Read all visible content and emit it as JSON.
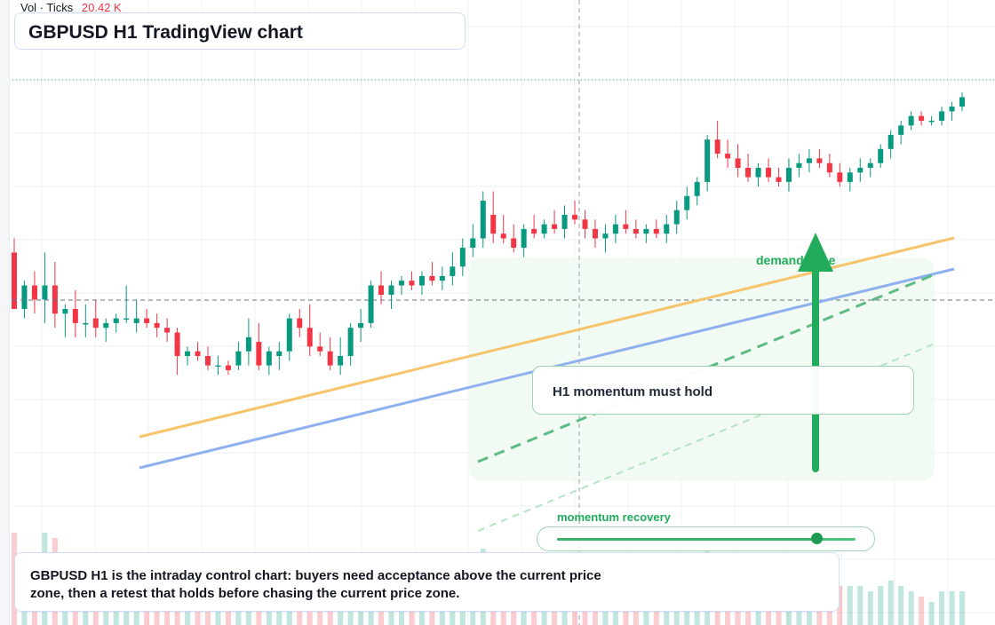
{
  "header": {
    "vol_label": "Vol",
    "ticks_label": "Ticks",
    "vol_value": "20.42 K",
    "title": "GBPUSD H1 TradingView chart"
  },
  "annotations": {
    "callout": "H1 momentum must hold",
    "zone_label": "demand zone",
    "slider_label": "momentum recovery",
    "slider_level": 0.87,
    "caption": "GBPUSD H1 is the intraday control chart: buyers need acceptance above the current price zone, then a retest that holds before chasing the current price zone."
  },
  "colors": {
    "bull": "#089981",
    "bear": "#f23645",
    "accent": "#22ab5b",
    "trend_orange": "#f7c46c",
    "trend_blue": "#8fb0ef"
  },
  "chart_data": {
    "type": "candlestick",
    "symbol": "GBPUSD",
    "timeframe": "H1",
    "price_scale": "unlabeled (0-100 relative)",
    "candles": [
      {
        "o": 52,
        "h": 55,
        "l": 40,
        "c": 40
      },
      {
        "o": 40,
        "h": 46,
        "l": 38,
        "c": 45
      },
      {
        "o": 45,
        "h": 48,
        "l": 39,
        "c": 42
      },
      {
        "o": 42,
        "h": 52,
        "l": 37,
        "c": 45
      },
      {
        "o": 45,
        "h": 50,
        "l": 36,
        "c": 39
      },
      {
        "o": 39,
        "h": 41,
        "l": 34,
        "c": 40
      },
      {
        "o": 40,
        "h": 44,
        "l": 34,
        "c": 37
      },
      {
        "o": 37,
        "h": 41,
        "l": 34,
        "c": 37
      },
      {
        "o": 38,
        "h": 42,
        "l": 34,
        "c": 36
      },
      {
        "o": 36,
        "h": 38,
        "l": 33,
        "c": 37
      },
      {
        "o": 37,
        "h": 39,
        "l": 35,
        "c": 38
      },
      {
        "o": 38,
        "h": 45,
        "l": 37,
        "c": 38
      },
      {
        "o": 37,
        "h": 42,
        "l": 35,
        "c": 38
      },
      {
        "o": 38,
        "h": 40,
        "l": 36,
        "c": 37
      },
      {
        "o": 37,
        "h": 39,
        "l": 34,
        "c": 36
      },
      {
        "o": 36,
        "h": 38,
        "l": 33,
        "c": 35
      },
      {
        "o": 35,
        "h": 36,
        "l": 26,
        "c": 30
      },
      {
        "o": 30,
        "h": 32,
        "l": 28,
        "c": 31
      },
      {
        "o": 31,
        "h": 33,
        "l": 29,
        "c": 30
      },
      {
        "o": 30,
        "h": 32,
        "l": 27,
        "c": 28
      },
      {
        "o": 28,
        "h": 30,
        "l": 26,
        "c": 28
      },
      {
        "o": 28,
        "h": 29,
        "l": 26,
        "c": 27
      },
      {
        "o": 28,
        "h": 33,
        "l": 27,
        "c": 31
      },
      {
        "o": 31,
        "h": 38,
        "l": 28,
        "c": 34
      },
      {
        "o": 33,
        "h": 37,
        "l": 27,
        "c": 28
      },
      {
        "o": 28,
        "h": 32,
        "l": 26,
        "c": 31
      },
      {
        "o": 30,
        "h": 33,
        "l": 27,
        "c": 31
      },
      {
        "o": 31,
        "h": 39,
        "l": 29,
        "c": 38
      },
      {
        "o": 38,
        "h": 40,
        "l": 34,
        "c": 36
      },
      {
        "o": 36,
        "h": 41,
        "l": 30,
        "c": 32
      },
      {
        "o": 32,
        "h": 35,
        "l": 30,
        "c": 31
      },
      {
        "o": 31,
        "h": 34,
        "l": 27,
        "c": 28
      },
      {
        "o": 28,
        "h": 34,
        "l": 26,
        "c": 30
      },
      {
        "o": 30,
        "h": 37,
        "l": 28,
        "c": 36
      },
      {
        "o": 36,
        "h": 40,
        "l": 33,
        "c": 37
      },
      {
        "o": 37,
        "h": 46,
        "l": 36,
        "c": 45
      },
      {
        "o": 45,
        "h": 48,
        "l": 41,
        "c": 43
      },
      {
        "o": 43,
        "h": 46,
        "l": 40,
        "c": 45
      },
      {
        "o": 45,
        "h": 47,
        "l": 43,
        "c": 46
      },
      {
        "o": 46,
        "h": 48,
        "l": 44,
        "c": 45
      },
      {
        "o": 45,
        "h": 48,
        "l": 43,
        "c": 47
      },
      {
        "o": 47,
        "h": 50,
        "l": 45,
        "c": 46
      },
      {
        "o": 46,
        "h": 49,
        "l": 44,
        "c": 47
      },
      {
        "o": 47,
        "h": 52,
        "l": 45,
        "c": 49
      },
      {
        "o": 49,
        "h": 55,
        "l": 47,
        "c": 53
      },
      {
        "o": 53,
        "h": 58,
        "l": 51,
        "c": 55
      },
      {
        "o": 55,
        "h": 65,
        "l": 53,
        "c": 63
      },
      {
        "o": 60,
        "h": 65,
        "l": 54,
        "c": 56
      },
      {
        "o": 56,
        "h": 60,
        "l": 54,
        "c": 55
      },
      {
        "o": 55,
        "h": 58,
        "l": 52,
        "c": 53
      },
      {
        "o": 53,
        "h": 58,
        "l": 51,
        "c": 57
      },
      {
        "o": 57,
        "h": 60,
        "l": 55,
        "c": 56
      },
      {
        "o": 56,
        "h": 59,
        "l": 55,
        "c": 58
      },
      {
        "o": 58,
        "h": 61,
        "l": 56,
        "c": 57
      },
      {
        "o": 57,
        "h": 62,
        "l": 55,
        "c": 60
      },
      {
        "o": 60,
        "h": 63,
        "l": 58,
        "c": 59
      },
      {
        "o": 59,
        "h": 61,
        "l": 55,
        "c": 57
      },
      {
        "o": 57,
        "h": 59,
        "l": 53,
        "c": 55
      },
      {
        "o": 55,
        "h": 58,
        "l": 52,
        "c": 56
      },
      {
        "o": 56,
        "h": 60,
        "l": 54,
        "c": 58
      },
      {
        "o": 58,
        "h": 61,
        "l": 56,
        "c": 57
      },
      {
        "o": 57,
        "h": 59,
        "l": 55,
        "c": 56
      },
      {
        "o": 56,
        "h": 58,
        "l": 54,
        "c": 57
      },
      {
        "o": 57,
        "h": 59,
        "l": 55,
        "c": 56
      },
      {
        "o": 56,
        "h": 60,
        "l": 54,
        "c": 58
      },
      {
        "o": 58,
        "h": 63,
        "l": 56,
        "c": 61
      },
      {
        "o": 61,
        "h": 66,
        "l": 59,
        "c": 64
      },
      {
        "o": 64,
        "h": 68,
        "l": 62,
        "c": 67
      },
      {
        "o": 67,
        "h": 77,
        "l": 65,
        "c": 76
      },
      {
        "o": 76,
        "h": 80,
        "l": 72,
        "c": 73
      },
      {
        "o": 73,
        "h": 76,
        "l": 70,
        "c": 72
      },
      {
        "o": 72,
        "h": 75,
        "l": 68,
        "c": 70
      },
      {
        "o": 70,
        "h": 73,
        "l": 67,
        "c": 68
      },
      {
        "o": 68,
        "h": 71,
        "l": 66,
        "c": 70
      },
      {
        "o": 70,
        "h": 72,
        "l": 67,
        "c": 68
      },
      {
        "o": 68,
        "h": 70,
        "l": 66,
        "c": 67
      },
      {
        "o": 67,
        "h": 72,
        "l": 65,
        "c": 70
      },
      {
        "o": 70,
        "h": 73,
        "l": 68,
        "c": 71
      },
      {
        "o": 71,
        "h": 74,
        "l": 69,
        "c": 72
      },
      {
        "o": 72,
        "h": 74,
        "l": 70,
        "c": 71
      },
      {
        "o": 71,
        "h": 73,
        "l": 68,
        "c": 69
      },
      {
        "o": 69,
        "h": 71,
        "l": 66,
        "c": 67
      },
      {
        "o": 67,
        "h": 70,
        "l": 65,
        "c": 69
      },
      {
        "o": 69,
        "h": 72,
        "l": 67,
        "c": 70
      },
      {
        "o": 70,
        "h": 72,
        "l": 68,
        "c": 71
      },
      {
        "o": 71,
        "h": 75,
        "l": 70,
        "c": 74
      },
      {
        "o": 74,
        "h": 78,
        "l": 72,
        "c": 77
      },
      {
        "o": 77,
        "h": 80,
        "l": 75,
        "c": 79
      },
      {
        "o": 79,
        "h": 82,
        "l": 78,
        "c": 81
      },
      {
        "o": 81,
        "h": 82,
        "l": 79,
        "c": 80
      },
      {
        "o": 80,
        "h": 81,
        "l": 79,
        "c": 80
      },
      {
        "o": 80,
        "h": 83,
        "l": 79,
        "c": 82
      },
      {
        "o": 82,
        "h": 84,
        "l": 80,
        "c": 83
      },
      {
        "o": 83,
        "h": 86,
        "l": 82,
        "c": 85
      }
    ]
  }
}
